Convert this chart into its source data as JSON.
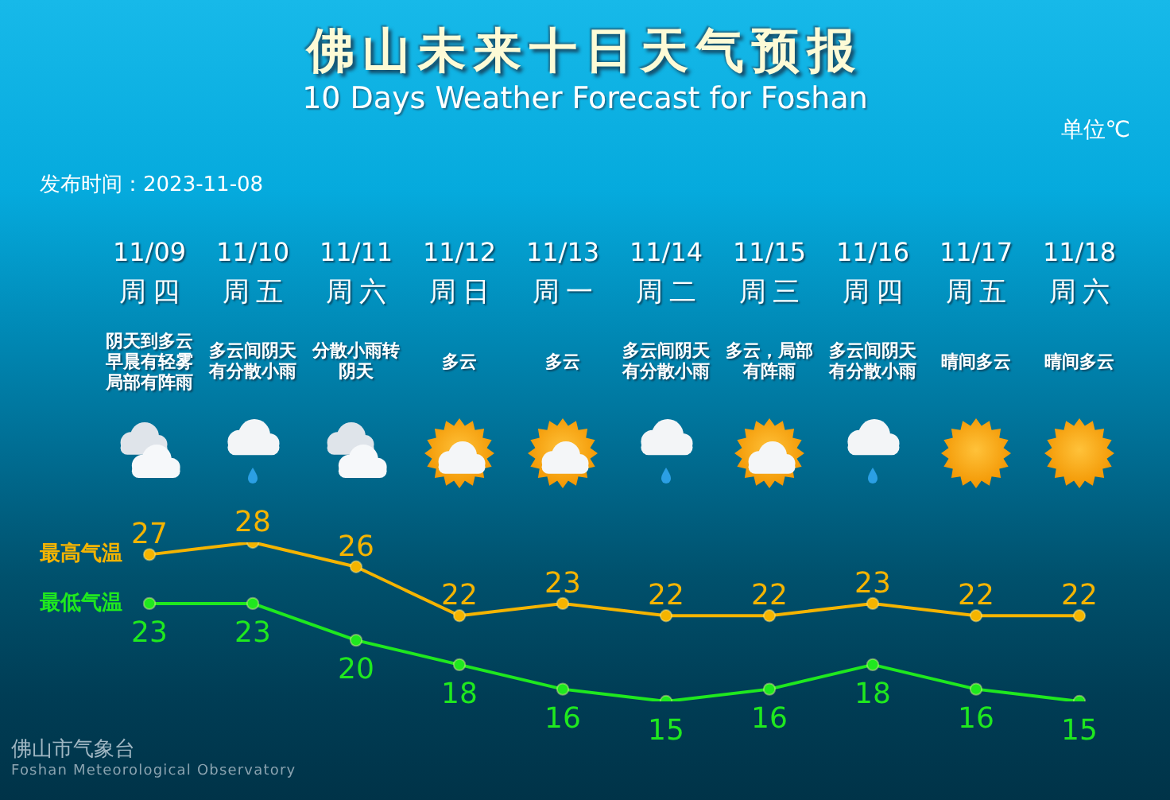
{
  "chart_data": {
    "type": "line",
    "title": "佛山未来十日天气预报",
    "subtitle": "10 Days Weather Forecast for Foshan",
    "categories": [
      "11/09",
      "11/10",
      "11/11",
      "11/12",
      "11/13",
      "11/14",
      "11/15",
      "11/16",
      "11/17",
      "11/18"
    ],
    "series": [
      {
        "name": "最高气温",
        "color": "#f5b400",
        "values": [
          27,
          28,
          26,
          22,
          23,
          22,
          22,
          23,
          22,
          22
        ]
      },
      {
        "name": "最低气温",
        "color": "#1fe81f",
        "values": [
          23,
          23,
          20,
          18,
          16,
          15,
          16,
          18,
          16,
          15
        ]
      }
    ],
    "data_labels": true,
    "marker": "circle",
    "line_style": "solid",
    "tick_labels": "x",
    "annotations": [
      "单位℃",
      "发布时间：2023-11-08",
      "佛山市气象台",
      "Foshan Meteorological Observatory",
      "周四",
      "周五",
      "周六",
      "周日",
      "周一",
      "周二",
      "周三",
      "周四",
      "周五",
      "周六",
      "阴天到多云早晨有轻雾局部有阵雨",
      "多云间阴天有分散小雨",
      "分散小雨转阴天",
      "多云",
      "多云",
      "多云间阴天有分散小雨",
      "多云，局部有阵雨",
      "多云间阴天有分散小雨",
      "晴间多云",
      "晴间多云"
    ]
  }
}
